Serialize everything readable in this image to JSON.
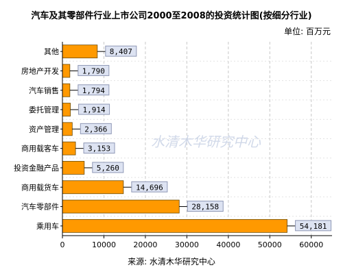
{
  "header": {
    "title": "汽车及其零部件行业上市公司2000至2008的投资统计图(按细分行业)",
    "unit": "单位: 百万元"
  },
  "footer": {
    "source": "来源: 水清木华研究中心"
  },
  "watermark": {
    "text": "水清木华研究中心"
  },
  "colors": {
    "bar": "#FF9900",
    "label_bg": "#DDE3F2",
    "grid": "#C8C8C8"
  },
  "chart_data": {
    "type": "bar",
    "orientation": "horizontal",
    "categories": [
      "其他",
      "房地产开发",
      "汽车销售",
      "委托管理",
      "资产管理",
      "商用载客车",
      "投资金融产品",
      "商用载货车",
      "汽车零部件",
      "乘用车"
    ],
    "values": [
      8407,
      1790,
      1794,
      1914,
      2366,
      3153,
      5260,
      14696,
      28158,
      54181
    ],
    "data_labels": [
      "8,407",
      "1,790",
      "1,794",
      "1,914",
      "2,366",
      "3,153",
      "5,260",
      "14,696",
      "28,158",
      "54,181"
    ],
    "x_ticks": [
      "0",
      "10000",
      "20000",
      "30000",
      "40000",
      "50000",
      "60000"
    ],
    "xlim": [
      0,
      65000
    ],
    "grid": "vertical dashed"
  }
}
